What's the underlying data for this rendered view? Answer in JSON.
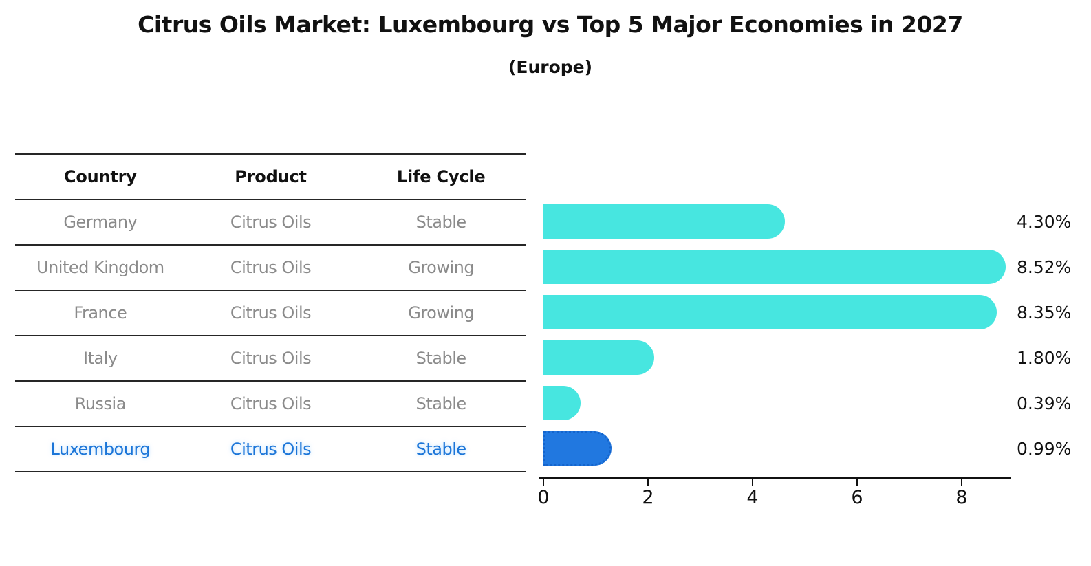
{
  "title": "Citrus Oils Market: Luxembourg vs Top 5 Major Economies in 2027",
  "subtitle": "(Europe)",
  "table": {
    "headers": [
      "Country",
      "Product",
      "Life Cycle"
    ],
    "rows": [
      {
        "country": "Germany",
        "product": "Citrus Oils",
        "life_cycle": "Stable"
      },
      {
        "country": "United Kingdom",
        "product": "Citrus Oils",
        "life_cycle": "Growing"
      },
      {
        "country": "France",
        "product": "Citrus Oils",
        "life_cycle": "Growing"
      },
      {
        "country": "Italy",
        "product": "Citrus Oils",
        "life_cycle": "Stable"
      },
      {
        "country": "Russia",
        "product": "Citrus Oils",
        "life_cycle": "Stable"
      },
      {
        "country": "Luxembourg",
        "product": "Citrus Oils",
        "life_cycle": "Stable"
      }
    ],
    "highlight_row_index": 5
  },
  "chart_data": {
    "type": "bar",
    "orientation": "horizontal",
    "categories": [
      "Germany",
      "United Kingdom",
      "France",
      "Italy",
      "Russia",
      "Luxembourg"
    ],
    "values": [
      4.3,
      8.52,
      8.35,
      1.8,
      0.39,
      0.99
    ],
    "value_labels": [
      "4.30%",
      "8.52%",
      "8.35%",
      "1.80%",
      "0.39%",
      "0.99%"
    ],
    "x_ticks": [
      "0",
      "2",
      "4",
      "6",
      "8"
    ],
    "x_tick_values": [
      0,
      2,
      4,
      6,
      8
    ],
    "xlim": [
      0,
      9
    ],
    "grid": false,
    "legend": "none",
    "highlight_index": 5,
    "colors": {
      "bar_default": "#47e6e0",
      "bar_highlight_fill": "#2178e0",
      "bar_highlight_border": "#1464cc",
      "highlight_text": "#1b75d8",
      "row_text": "#8a8a8a",
      "header_text": "#111111",
      "axis": "#111111"
    }
  }
}
